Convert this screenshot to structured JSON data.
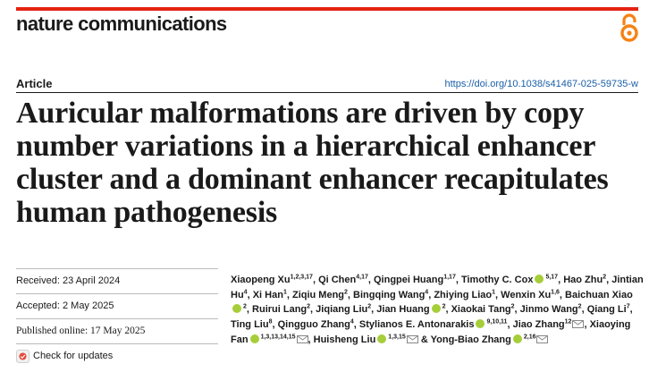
{
  "header": {
    "journal": "nature communications",
    "article_type": "Article",
    "doi": "https://doi.org/10.1038/s41467-025-59735-w",
    "oa_icon": "open-access-icon"
  },
  "title": "Auricular malformations are driven by copy number variations in a hierarchical enhancer cluster and a dominant enhancer recapitulates human pathogenesis",
  "dates": {
    "received": "Received: 23 April 2024",
    "accepted": "Accepted: 2 May 2025",
    "published": "Published online: 17 May 2025",
    "check_updates": "Check for updates"
  },
  "authors": [
    {
      "name": "Xiaopeng Xu",
      "aff": "1,2,3,17"
    },
    {
      "name": "Qi Chen",
      "aff": "4,17"
    },
    {
      "name": "Qingpei Huang",
      "aff": "1,17"
    },
    {
      "name": "Timothy C. Cox",
      "aff": "5,17",
      "orcid": true
    },
    {
      "name": "Hao Zhu",
      "aff": "2"
    },
    {
      "name": "Jintian Hu",
      "aff": "4"
    },
    {
      "name": "Xi Han",
      "aff": "1"
    },
    {
      "name": "Ziqiu Meng",
      "aff": "2"
    },
    {
      "name": "Bingqing Wang",
      "aff": "4"
    },
    {
      "name": "Zhiying Liao",
      "aff": "1"
    },
    {
      "name": "Wenxin Xu",
      "aff": "1,6"
    },
    {
      "name": "Baichuan Xiao",
      "aff": "2",
      "orcid": true
    },
    {
      "name": "Ruirui Lang",
      "aff": "2"
    },
    {
      "name": "Jiqiang Liu",
      "aff": "2"
    },
    {
      "name": "Jian Huang",
      "aff": "2",
      "orcid": true
    },
    {
      "name": "Xiaokai Tang",
      "aff": "2"
    },
    {
      "name": "Jinmo Wang",
      "aff": "2"
    },
    {
      "name": "Qiang Li",
      "aff": "7"
    },
    {
      "name": "Ting Liu",
      "aff": "8"
    },
    {
      "name": "Qingguo Zhang",
      "aff": "4"
    },
    {
      "name": "Stylianos E. Antonarakis",
      "aff": "9,10,11",
      "orcid": true
    },
    {
      "name": "Jiao Zhang",
      "aff": "12",
      "email": true
    },
    {
      "name": "Xiaoying Fan",
      "aff": "1,3,13,14,15",
      "orcid": true,
      "email": true
    },
    {
      "name": "Huisheng Liu",
      "aff": "1,3,15",
      "orcid": true,
      "email": true
    },
    {
      "name": "Yong-Biao Zhang",
      "aff": "2,16",
      "orcid": true,
      "email": true
    }
  ],
  "colors": {
    "accent_bar": "#e42313",
    "doi_link": "#1a5fa8",
    "orcid": "#a6ce39"
  }
}
